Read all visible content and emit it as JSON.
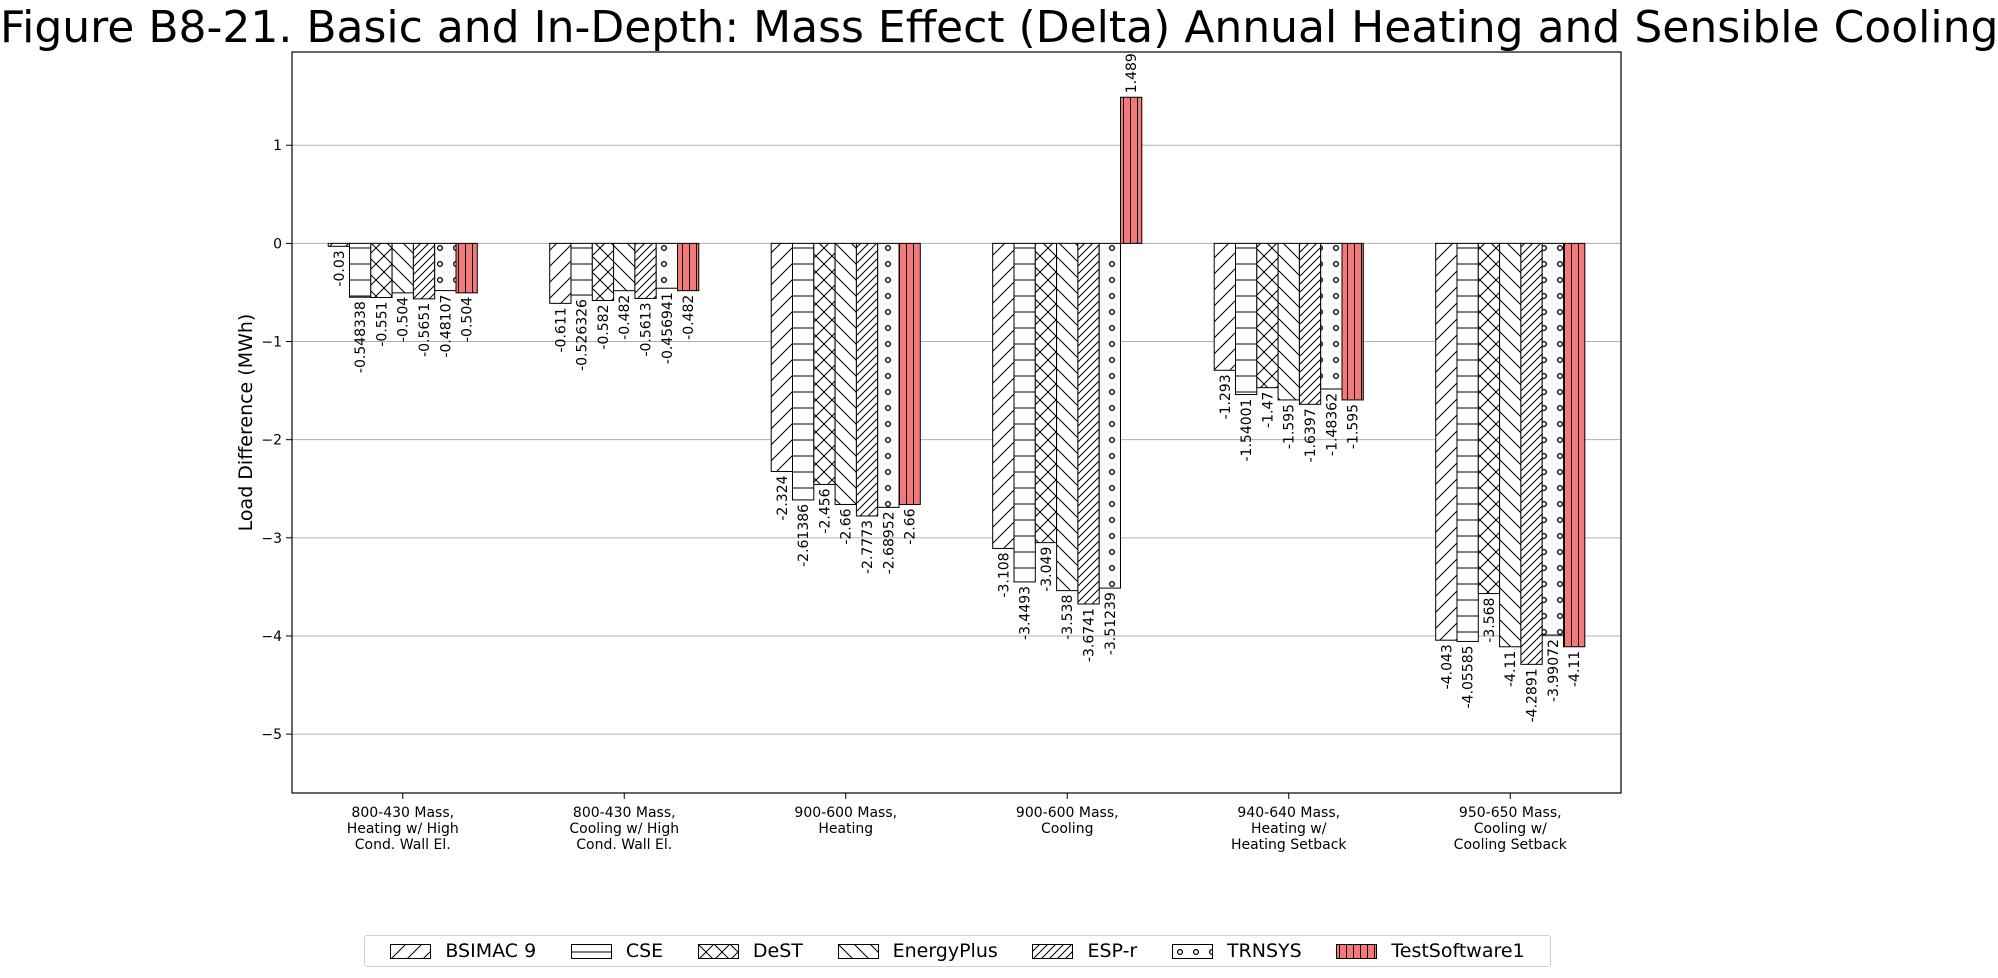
{
  "chart_data": {
    "type": "bar",
    "title": "Figure B8-21. Basic and In-Depth: Mass Effect (Delta) Annual Heating and Sensible Cooling",
    "ylabel": "Load Difference (MWh)",
    "xlabel": "",
    "ylim": [
      -5.6,
      1.95
    ],
    "yticks": [
      1,
      0,
      -1,
      -2,
      -3,
      -4,
      -5
    ],
    "ytick_labels": [
      "1",
      "0",
      "−1",
      "−2",
      "−3",
      "−4",
      "−5"
    ],
    "grid": "horizontal",
    "legend_position": "bottom",
    "categories": [
      [
        "800-430 Mass,",
        "Heating w/ High",
        "Cond. Wall El."
      ],
      [
        "800-430 Mass,",
        "Cooling w/ High",
        "Cond. Wall El."
      ],
      [
        "900-600 Mass,",
        "Heating"
      ],
      [
        "900-600 Mass,",
        "Cooling"
      ],
      [
        "940-640 Mass,",
        "Heating w/",
        "Heating Setback"
      ],
      [
        "950-650 Mass,",
        "Cooling w/",
        "Cooling Setback"
      ]
    ],
    "series": [
      {
        "name": "BSIMAC 9",
        "hatch": "slash",
        "color": "#ffffff",
        "values": [
          -0.03,
          -0.611,
          -2.324,
          -3.108,
          -1.293,
          -4.043
        ],
        "labels": [
          "-0.03",
          "-0.611",
          "-2.324",
          "-3.108",
          "-1.293",
          "-4.043"
        ]
      },
      {
        "name": "CSE",
        "hatch": "hline",
        "color": "#ffffff",
        "values": [
          -0.548338,
          -0.526326,
          -2.61386,
          -3.4493,
          -1.54001,
          -4.05585
        ],
        "labels": [
          "-0.548338",
          "-0.526326",
          "-2.61386",
          "-3.4493",
          "-1.54001",
          "-4.05585"
        ]
      },
      {
        "name": "DeST",
        "hatch": "cross",
        "color": "#ffffff",
        "values": [
          -0.551,
          -0.582,
          -2.456,
          -3.049,
          -1.47,
          -3.568
        ],
        "labels": [
          "-0.551",
          "-0.582",
          "-2.456",
          "-3.049",
          "-1.47",
          "-3.568"
        ]
      },
      {
        "name": "EnergyPlus",
        "hatch": "backslash",
        "color": "#ffffff",
        "values": [
          -0.504,
          -0.482,
          -2.66,
          -3.538,
          -1.595,
          -4.11
        ],
        "labels": [
          "-0.504",
          "-0.482",
          "-2.66",
          "-3.538",
          "-1.595",
          "-4.11"
        ]
      },
      {
        "name": "ESP-r",
        "hatch": "dslash",
        "color": "#ffffff",
        "values": [
          -0.5651,
          -0.5613,
          -2.7773,
          -3.6741,
          -1.6397,
          -4.2891
        ],
        "labels": [
          "-0.5651",
          "-0.5613",
          "-2.7773",
          "-3.6741",
          "-1.6397",
          "-4.2891"
        ]
      },
      {
        "name": "TRNSYS",
        "hatch": "circles",
        "color": "#ffffff",
        "values": [
          -0.48107,
          -0.456941,
          -2.68952,
          -3.51239,
          -1.48362,
          -3.99072
        ],
        "labels": [
          "-0.48107",
          "-0.456941",
          "-2.68952",
          "-3.51239",
          "-1.48362",
          "-3.99072"
        ]
      },
      {
        "name": "TestSoftware1",
        "hatch": "vline",
        "color": "#f47a7a",
        "values": [
          -0.504,
          -0.482,
          -2.66,
          1.489,
          -1.595,
          -4.11
        ],
        "labels": [
          "-0.504",
          "-0.482",
          "-2.66",
          "1.489",
          "-1.595",
          "-4.11"
        ]
      }
    ]
  }
}
